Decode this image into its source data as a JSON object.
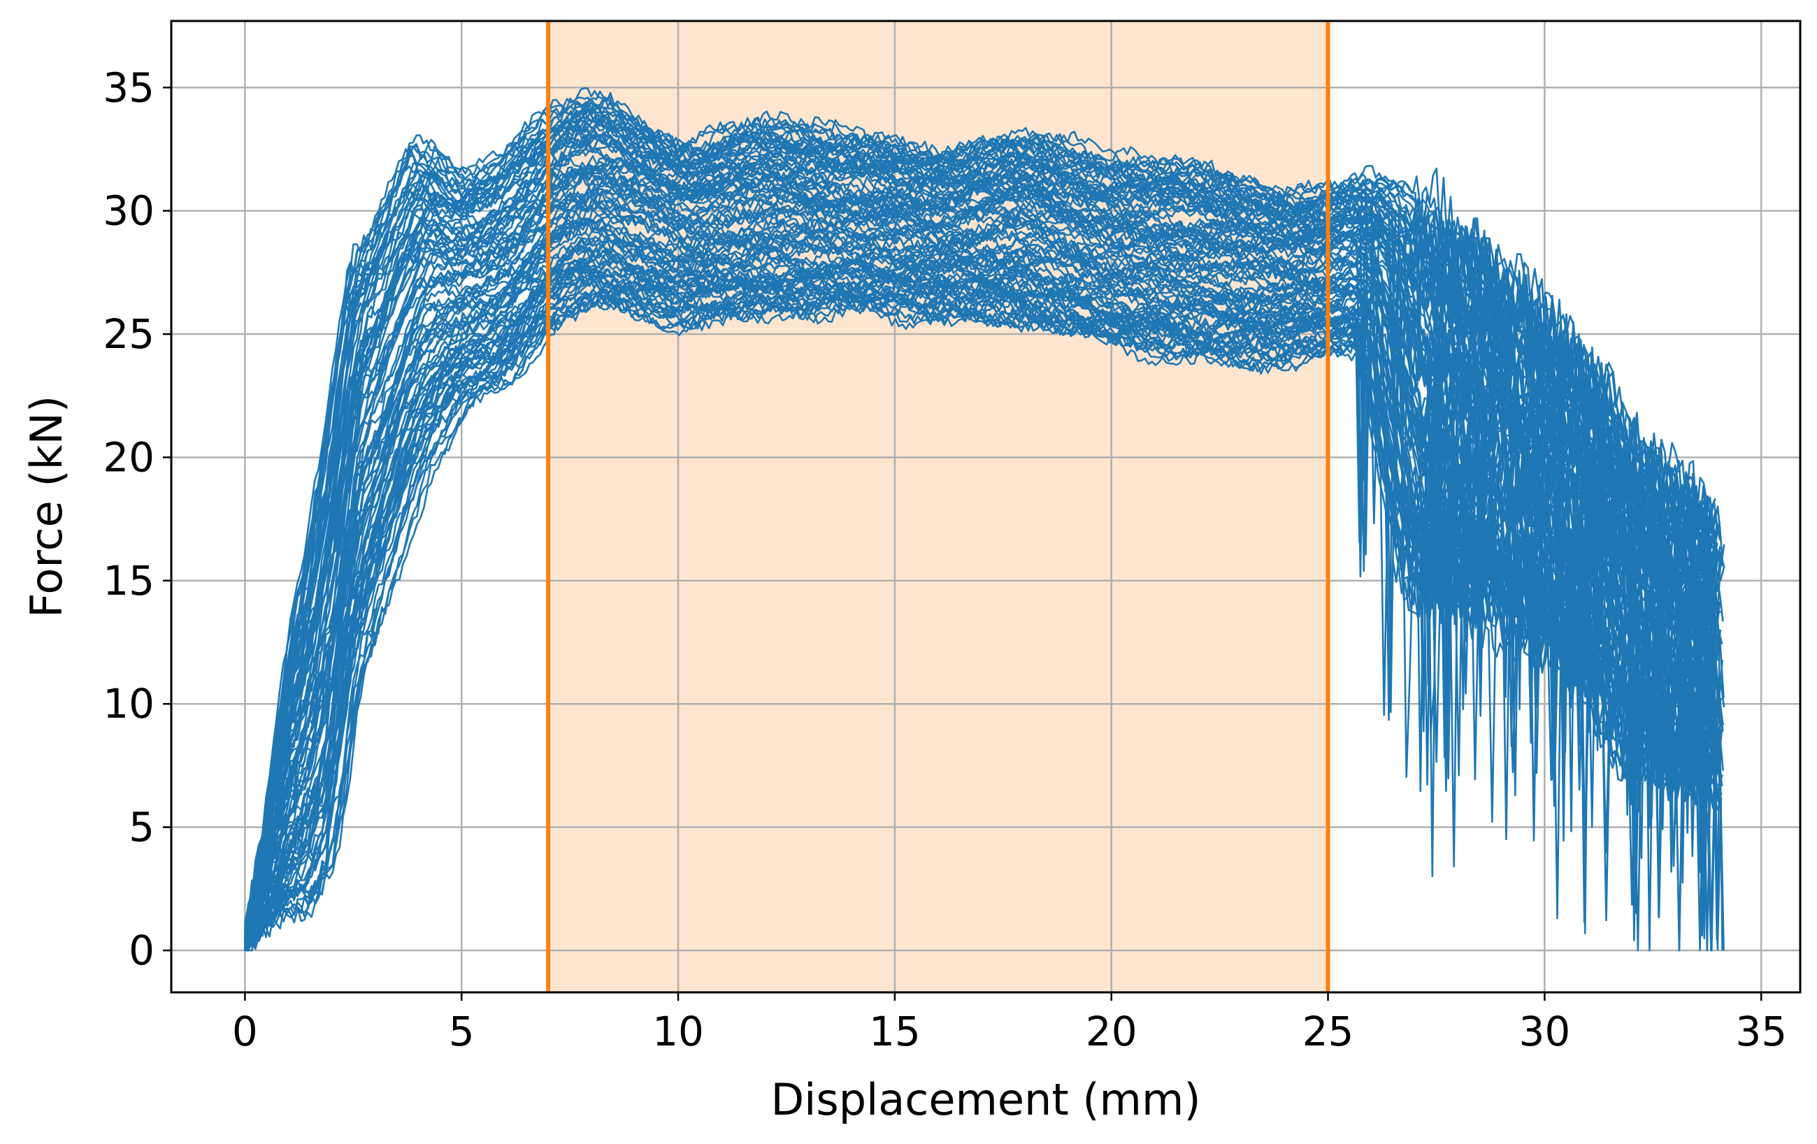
{
  "chart_data": {
    "type": "line",
    "title": "",
    "xlabel": "Displacement (mm)",
    "ylabel": "Force (kN)",
    "xlim": [
      -1.7,
      35.9
    ],
    "ylim": [
      -1.7,
      37.7
    ],
    "xticks": [
      0,
      5,
      10,
      15,
      20,
      25,
      30,
      35
    ],
    "yticks": [
      0,
      5,
      10,
      15,
      20,
      25,
      30,
      35
    ],
    "grid": true,
    "series_color": "#1f77b4",
    "series_count": 100,
    "region": {
      "x_start": 7,
      "x_end": 25,
      "line_color": "#ff7f0e",
      "fill_color": "#fde5cf"
    },
    "envelope": {
      "x": [
        0,
        0.5,
        1.0,
        1.5,
        2.0,
        2.5,
        3.0,
        4.0,
        5.0,
        6.0,
        7.0,
        8.0,
        9.0,
        10.0,
        12.0,
        14.0,
        16.0,
        18.0,
        20.0,
        22.0,
        24.0,
        25.0,
        26.0,
        27.0,
        28.0,
        29.0,
        30.0,
        31.0,
        32.0,
        33.0,
        34.1
      ],
      "lower": [
        0,
        0.5,
        0.6,
        0.5,
        2.0,
        9.0,
        12.0,
        18.0,
        21.5,
        22.0,
        24.5,
        25.5,
        25.3,
        25.0,
        25.2,
        25.3,
        25.3,
        25.0,
        24.0,
        23.3,
        23.5,
        23.8,
        24.0,
        13.0,
        13.0,
        12.5,
        11.5,
        10.0,
        7.0,
        6.0,
        5.5
      ],
      "upper": [
        0.5,
        6.0,
        13.0,
        18.0,
        24.0,
        30.0,
        31.0,
        34.5,
        32.0,
        33.0,
        34.5,
        35.5,
        34.5,
        33.5,
        34.3,
        33.5,
        33.0,
        34.0,
        32.5,
        32.5,
        31.5,
        31.5,
        32.0,
        32.0,
        30.0,
        29.0,
        27.0,
        25.0,
        22.0,
        20.0,
        18.0
      ]
    }
  }
}
